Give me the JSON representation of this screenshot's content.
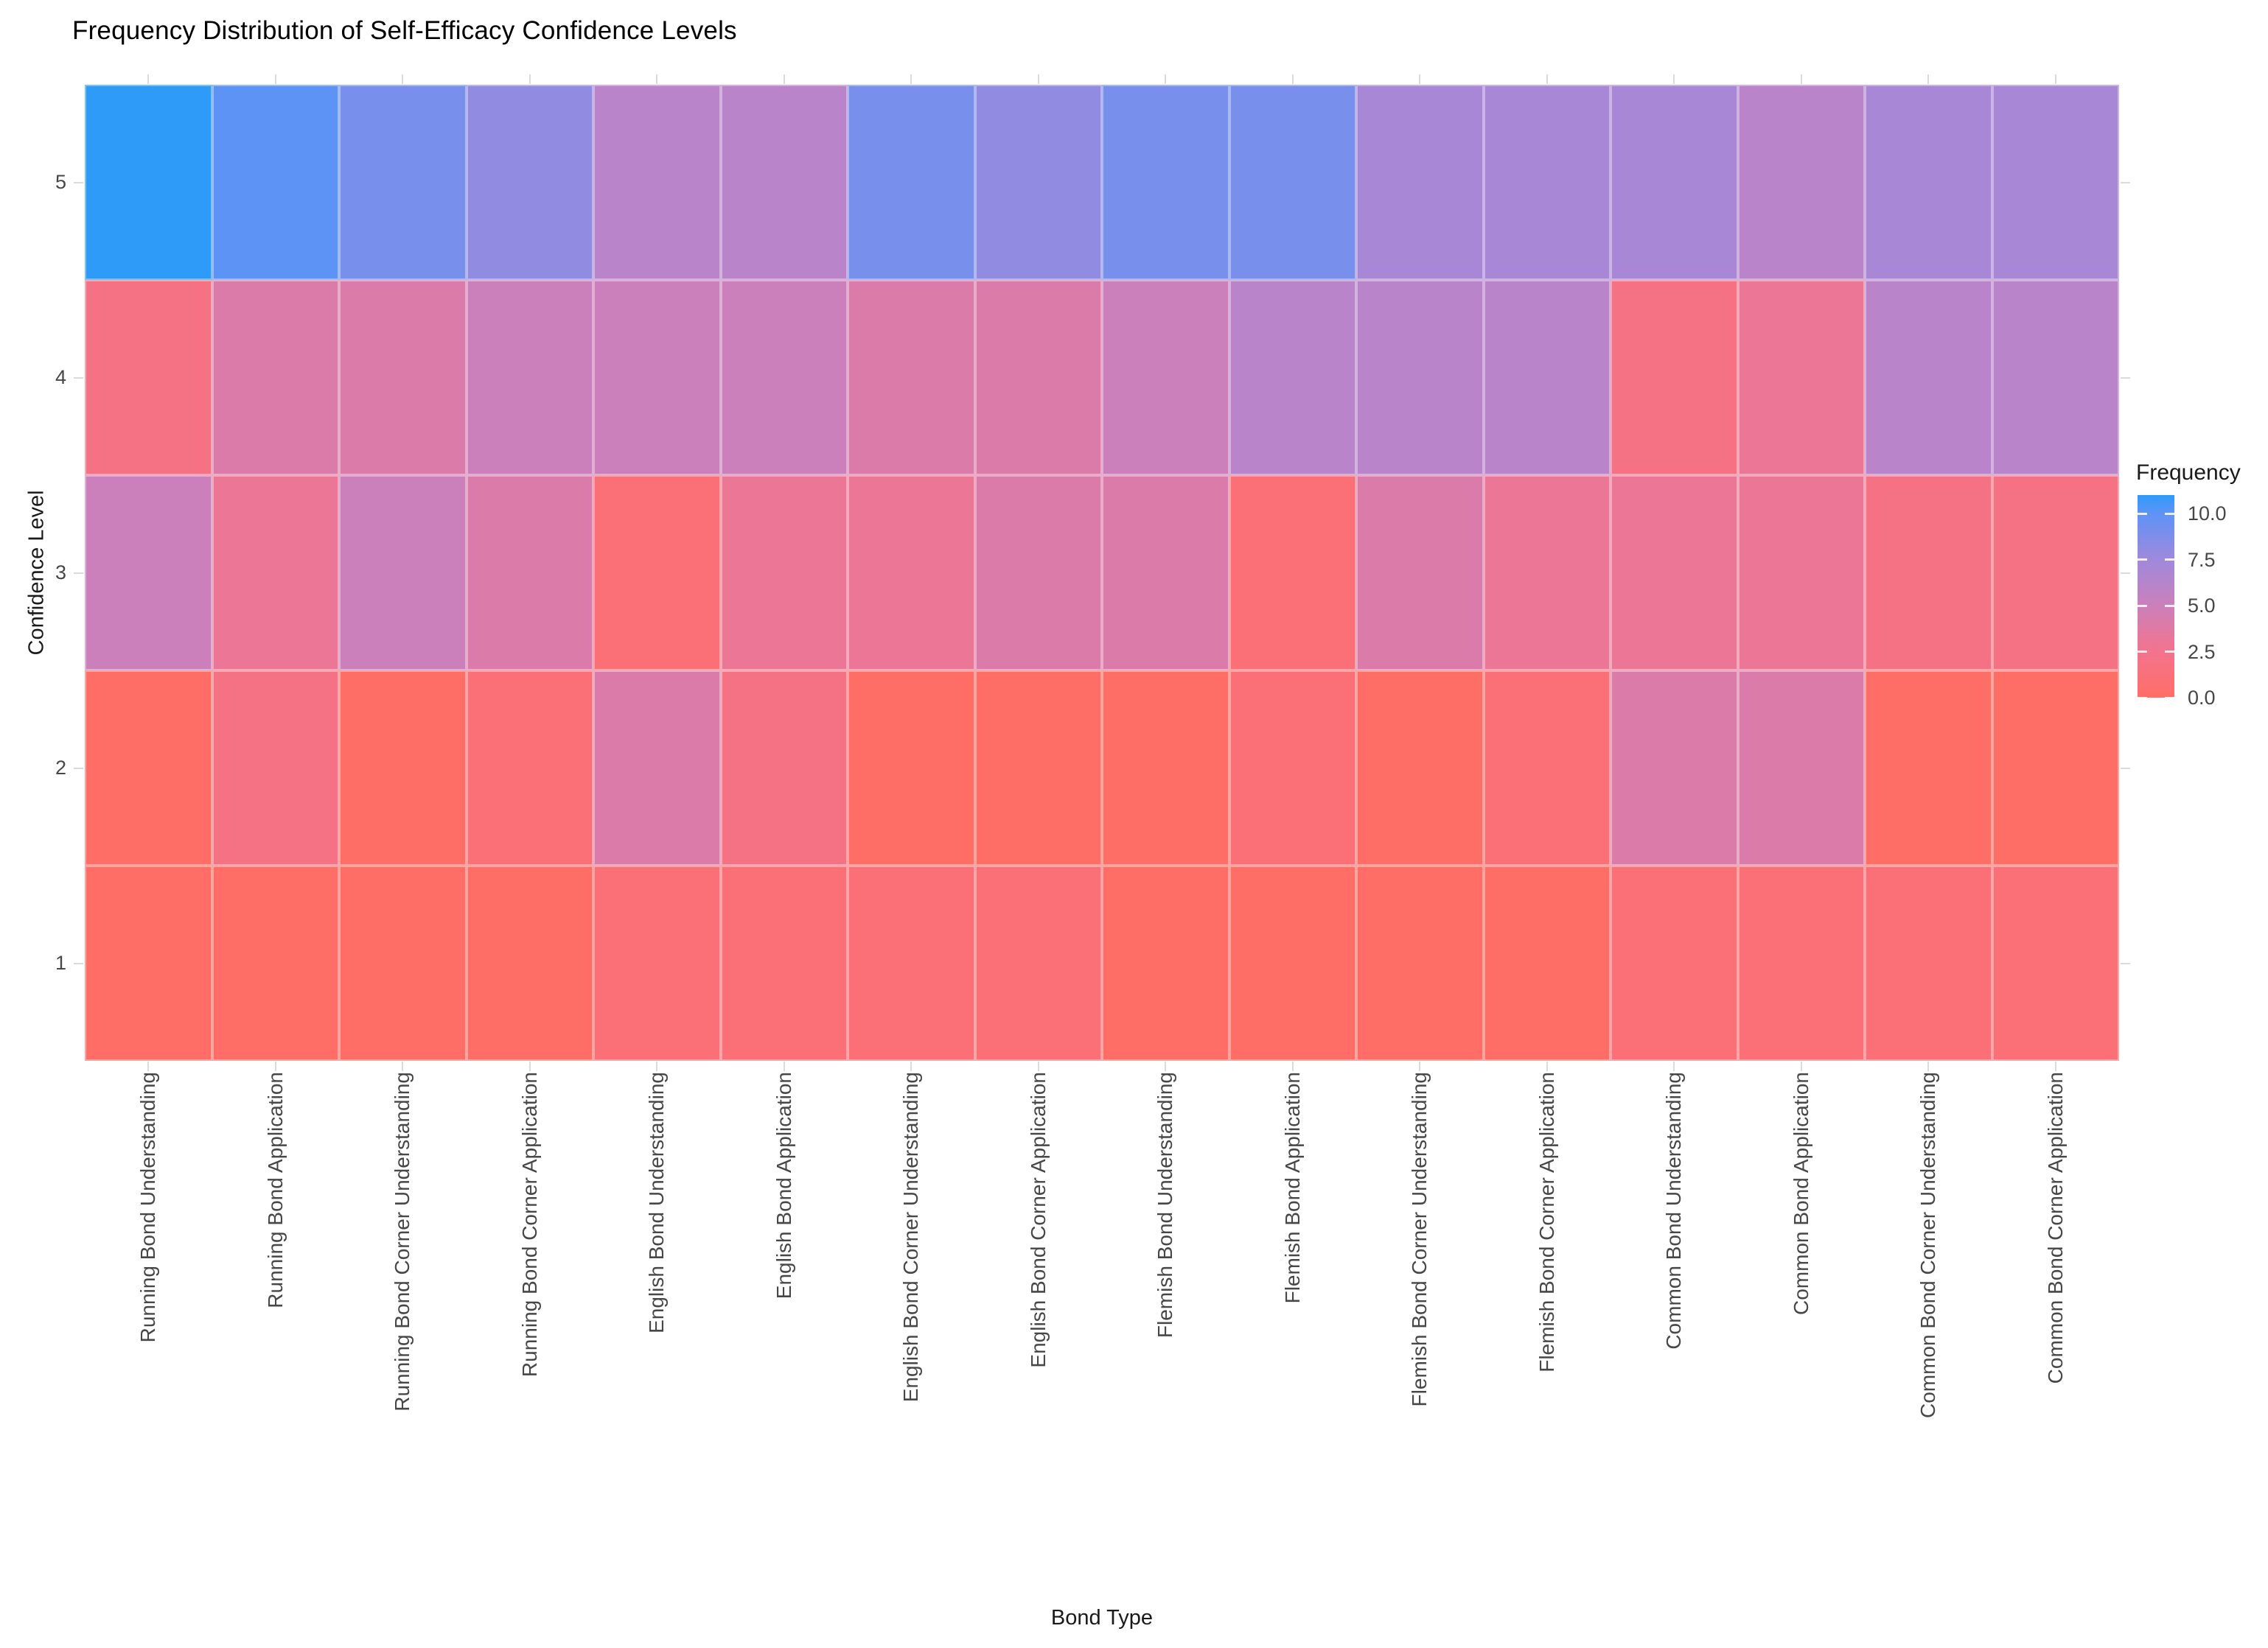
{
  "title": "Frequency Distribution of Self-Efficacy Confidence Levels",
  "chart_data": {
    "type": "heatmap",
    "title": "Frequency Distribution of Self-Efficacy Confidence Levels",
    "xlabel": "Bond Type",
    "ylabel": "Confidence Level",
    "x_categories": [
      "Running Bond Understanding",
      "Running Bond Application",
      "Running Bond Corner Understanding",
      "Running Bond Corner Application",
      "English Bond Understanding",
      "English Bond Application",
      "English Bond Corner Understanding",
      "English Bond Corner Application",
      "Flemish Bond Understanding",
      "Flemish Bond Application",
      "Flemish Bond Corner Understanding",
      "Flemish Bond Corner Application",
      "Common Bond Understanding",
      "Common Bond Application",
      "Common Bond Corner Understanding",
      "Common Bond Corner Application"
    ],
    "y_categories": [
      "1",
      "2",
      "3",
      "4",
      "5"
    ],
    "rows_top_to_bottom": [
      {
        "level": "5",
        "frequencies": [
          11,
          10,
          9,
          8,
          6,
          6,
          9,
          8,
          9,
          9,
          7,
          7,
          7,
          6,
          7,
          7
        ]
      },
      {
        "level": "4",
        "frequencies": [
          2,
          4,
          4,
          5,
          5,
          5,
          4,
          4,
          5,
          6,
          6,
          6,
          2,
          3,
          6,
          6
        ]
      },
      {
        "level": "3",
        "frequencies": [
          5,
          3,
          5,
          4,
          1,
          3,
          3,
          4,
          4,
          1,
          4,
          3,
          3,
          3,
          2,
          2
        ]
      },
      {
        "level": "2",
        "frequencies": [
          0,
          2,
          0,
          1,
          4,
          2,
          0,
          0,
          0,
          1,
          0,
          1,
          4,
          4,
          0,
          0
        ]
      },
      {
        "level": "1",
        "frequencies": [
          0,
          0,
          0,
          0,
          1,
          1,
          1,
          1,
          0,
          0,
          0,
          0,
          1,
          1,
          1,
          1
        ]
      }
    ],
    "legend": {
      "title": "Frequency",
      "tick_labels": [
        "10.0",
        "7.5",
        "5.0",
        "2.5",
        "0.0"
      ],
      "tick_values": [
        10,
        7.5,
        5,
        2.5,
        0
      ],
      "value_min": 0,
      "value_max": 11,
      "gradient_stops": [
        {
          "value": 0,
          "color": "#FF6E66"
        },
        {
          "value": 2.5,
          "color": "#F3738D"
        },
        {
          "value": 5,
          "color": "#CB80BB"
        },
        {
          "value": 7.5,
          "color": "#9F89DD"
        },
        {
          "value": 10,
          "color": "#5E93F6"
        },
        {
          "value": 11,
          "color": "#2E9BF9"
        }
      ]
    },
    "grid": false,
    "legend_position": "right"
  }
}
